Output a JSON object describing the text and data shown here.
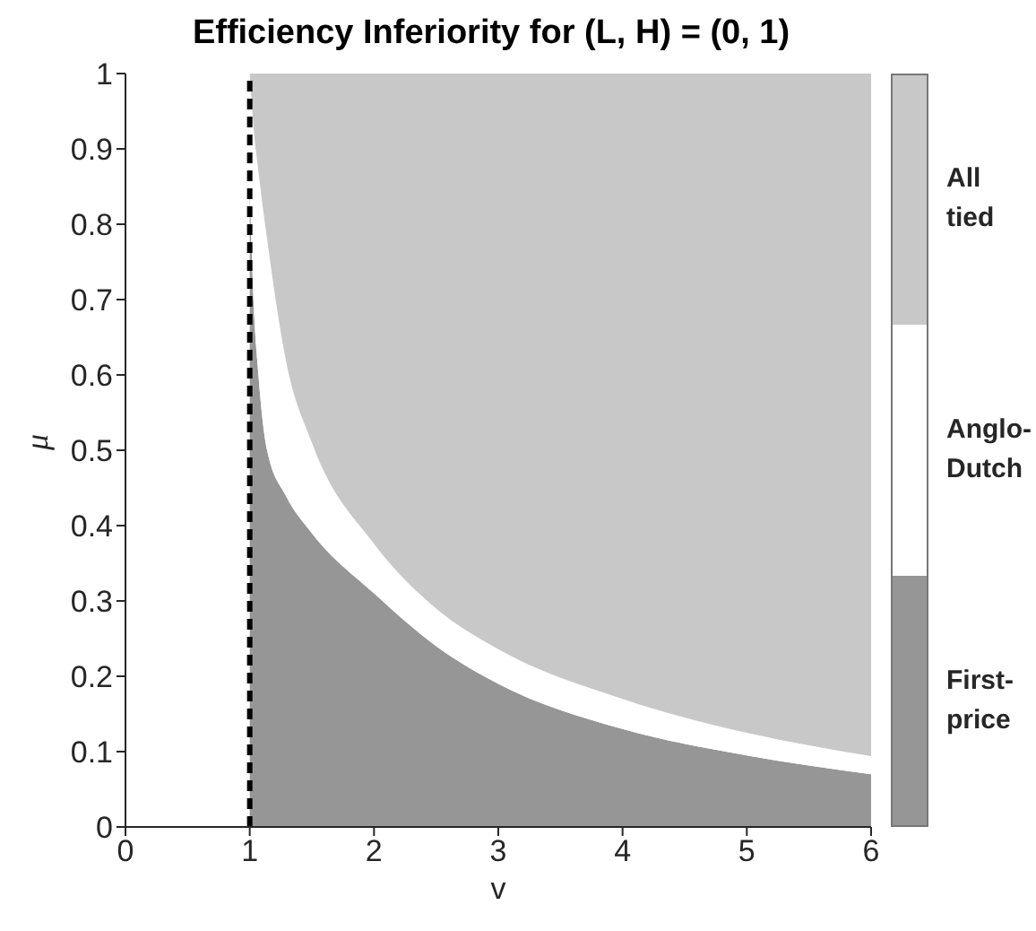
{
  "chart_data": {
    "type": "area",
    "title": "Efficiency Inferiority for (L, H) = (0, 1)",
    "xlabel": "v",
    "ylabel": "μ",
    "x": [
      1,
      1.03,
      1.07,
      1.14,
      1.29,
      1.5,
      2,
      2.5,
      3,
      4,
      5,
      6
    ],
    "stacked": true,
    "series": [
      {
        "name": "First-price",
        "color": "#969696",
        "values": [
          0.85,
          0.7,
          0.6,
          0.5,
          0.44,
          0.39,
          0.31,
          0.24,
          0.19,
          0.13,
          0.095,
          0.07
        ]
      },
      {
        "name": "Anglo-Dutch",
        "color": "#ffffff",
        "values": [
          0.15,
          0.23,
          0.27,
          0.28,
          0.18,
          0.12,
          0.066,
          0.05,
          0.046,
          0.04,
          0.03,
          0.024
        ]
      },
      {
        "name": "All tied",
        "color": "#c8c8c8",
        "values": [
          0,
          0.07,
          0.13,
          0.22,
          0.38,
          0.49,
          0.624,
          0.71,
          0.764,
          0.83,
          0.875,
          0.906
        ]
      }
    ],
    "xlim": [
      0,
      6
    ],
    "xticks": [
      0,
      1,
      2,
      3,
      4,
      5,
      6
    ],
    "ylim": [
      0,
      1
    ],
    "yticks": [
      0,
      0.1,
      0.2,
      0.3,
      0.4,
      0.5,
      0.6,
      0.7,
      0.8,
      0.9,
      1
    ],
    "ref_lines": [
      {
        "axis": "x",
        "value": 1,
        "color": "#000000",
        "line_style": "dashed"
      }
    ],
    "legend": "right",
    "grid": false
  }
}
